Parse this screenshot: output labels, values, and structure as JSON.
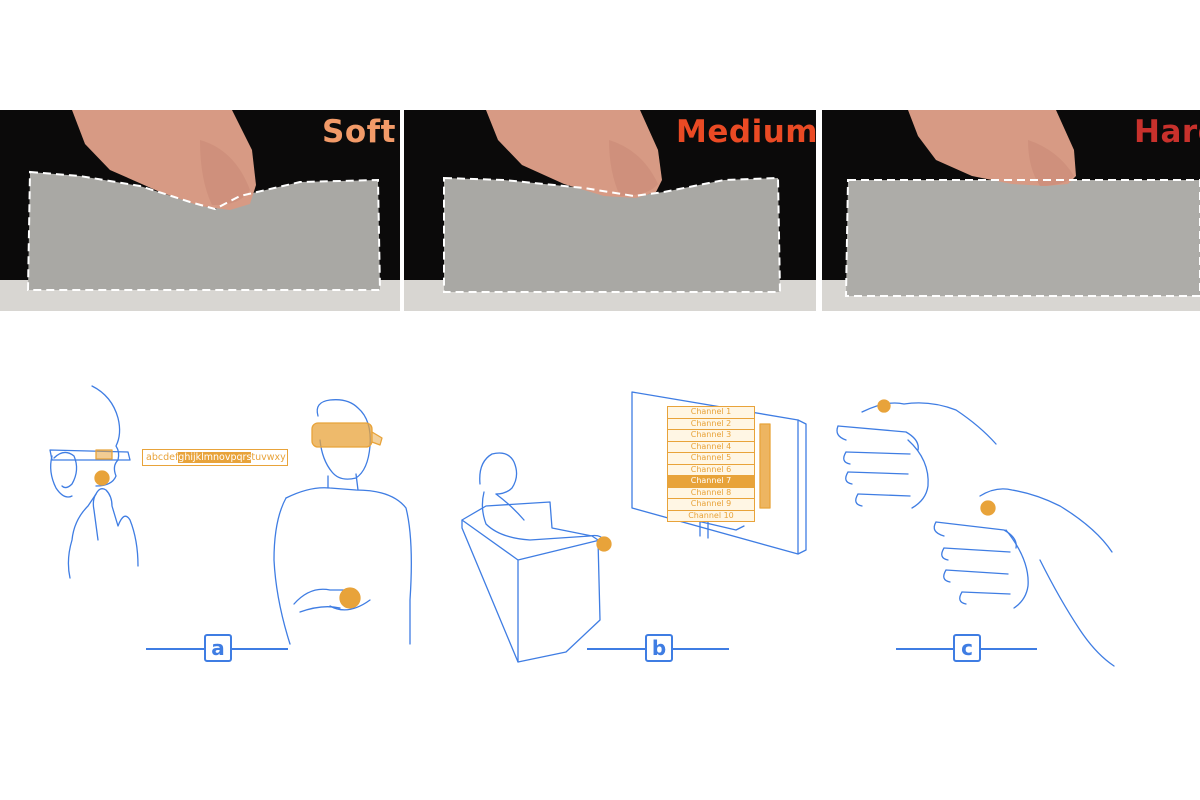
{
  "photos": [
    {
      "label": "Soft",
      "color": "#f29a68"
    },
    {
      "label": "Medium",
      "color": "#ea4a24"
    },
    {
      "label": "Hard",
      "color": "#c8312c"
    }
  ],
  "scenarios": [
    {
      "tag": "a"
    },
    {
      "tag": "b"
    },
    {
      "tag": "c"
    }
  ],
  "alphabet_strip": {
    "before": "abcdef",
    "highlight": "ghijklmnovpqrs",
    "after": "tuvwxy"
  },
  "channel_list": {
    "items": [
      "Channel 1",
      "Channel 2",
      "Channel 3",
      "Channel 4",
      "Channel 5",
      "Channel 6",
      "Channel 7",
      "Channel 8",
      "Channel 9",
      "Channel 10"
    ],
    "selected_index": 6
  },
  "colors": {
    "line_blue": "#3f7de3",
    "accent_orange": "#e8a33a",
    "photo_bg": "#0b0a0a",
    "sample_gray": "#a9a8a4"
  }
}
